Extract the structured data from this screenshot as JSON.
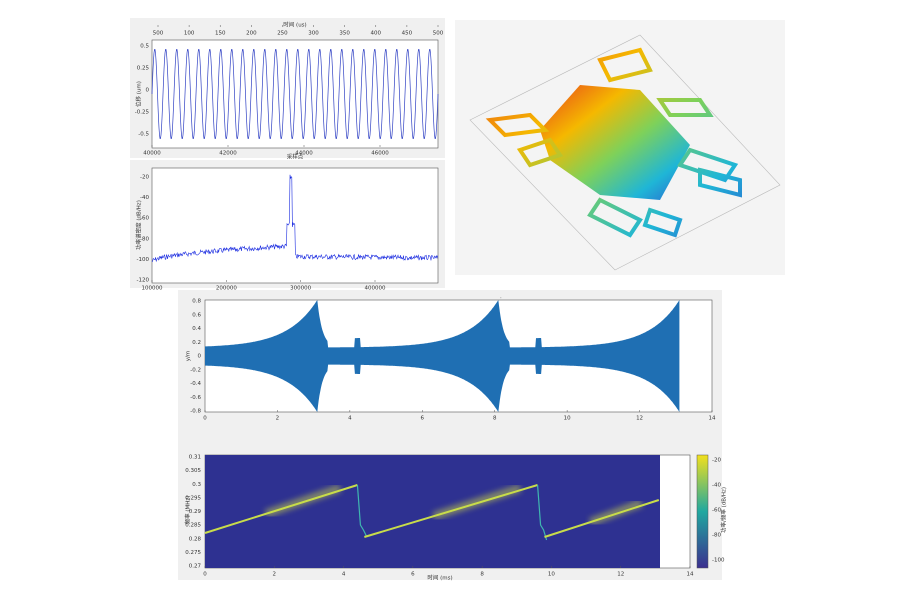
{
  "waveform": {
    "top_label": "时间 (us)",
    "top_ticks": [
      "500",
      "100",
      "150",
      "200",
      "250",
      "300",
      "350",
      "400",
      "450",
      "500"
    ],
    "yticks": [
      "0.5",
      "0.25",
      "0",
      "-0.25",
      "-0.5"
    ],
    "xticks": [
      "40000",
      "42000",
      "44000",
      "46000"
    ],
    "ylabel": "位移 (um)",
    "xlabel": "采样点"
  },
  "spectrum": {
    "yticks": [
      "-20",
      "-40",
      "-60",
      "-80",
      "-100",
      "-120"
    ],
    "xticks": [
      "100000",
      "200000",
      "300000",
      "400000"
    ],
    "ylabel": "功率谱密度 (dB/Hz)"
  },
  "signal": {
    "yticks": [
      "0.8",
      "0.6",
      "0.4",
      "0.2",
      "0",
      "-0.2",
      "-0.4",
      "-0.6",
      "-0.8"
    ],
    "xticks": [
      "0",
      "2",
      "4",
      "6",
      "8",
      "10",
      "12",
      "14"
    ],
    "ylabel": "y/m"
  },
  "spectrogram": {
    "yticks": [
      "0.31",
      "0.305",
      "0.3",
      "0.295",
      "0.29",
      "0.285",
      "0.28",
      "0.275",
      "0.27"
    ],
    "xticks": [
      "0",
      "2",
      "4",
      "6",
      "8",
      "10",
      "12",
      "14"
    ],
    "xlabel": "时间 (ms)",
    "ylabel": "频率 (MHz)",
    "cticks": [
      "-20",
      "-40",
      "-60",
      "-80",
      "-100"
    ],
    "clabel": "功率/频率 (dB/Hz)"
  }
}
